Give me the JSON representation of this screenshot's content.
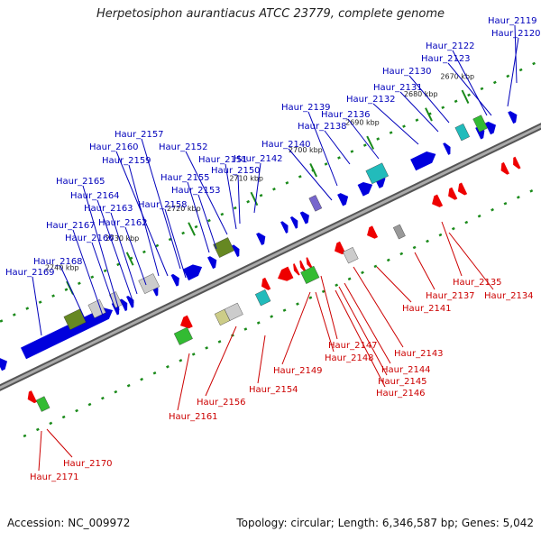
{
  "title": "Herpetosiphon aurantiacus ATCC 23779, complete genome",
  "footer": {
    "accession": "Accession: NC_009972",
    "summary": "Topology: circular; Length: 6,346,587 bp; Genes: 5,042"
  },
  "colors": {
    "backbone": "#888888",
    "forward": "#0000dd",
    "reverse": "#ee0000",
    "forward_label": "#0000bb",
    "reverse_label": "#cc0000",
    "tick_green": "#1a8a1a"
  },
  "scale_ticks": [
    "2670 kbp",
    "2680 kbp",
    "2690 kbp",
    "2700 kbp",
    "2710 kbp",
    "2720 kbp",
    "2730 kbp",
    "2740 kbp"
  ],
  "forward_labels": [
    "Haur_2119",
    "Haur_2120",
    "Haur_2122",
    "Haur_2123",
    "Haur_2130",
    "Haur_2131",
    "Haur_2132",
    "Haur_2136",
    "Haur_2138",
    "Haur_2139",
    "Haur_2140",
    "Haur_2142",
    "Haur_2150",
    "Haur_2151",
    "Haur_2152",
    "Haur_2153",
    "Haur_2155",
    "Haur_2157",
    "Haur_2158",
    "Haur_2159",
    "Haur_2160",
    "Haur_2162",
    "Haur_2163",
    "Haur_2164",
    "Haur_2165",
    "Haur_2166",
    "Haur_2167",
    "Haur_2168",
    "Haur_2169"
  ],
  "reverse_labels": [
    "Haur_2134",
    "Haur_2135",
    "Haur_2137",
    "Haur_2141",
    "Haur_2143",
    "Haur_2144",
    "Haur_2145",
    "Haur_2146",
    "Haur_2147",
    "Haur_2148",
    "Haur_2149",
    "Haur_2154",
    "Haur_2156",
    "Haur_2161",
    "Haur_2170",
    "Haur_2171"
  ]
}
